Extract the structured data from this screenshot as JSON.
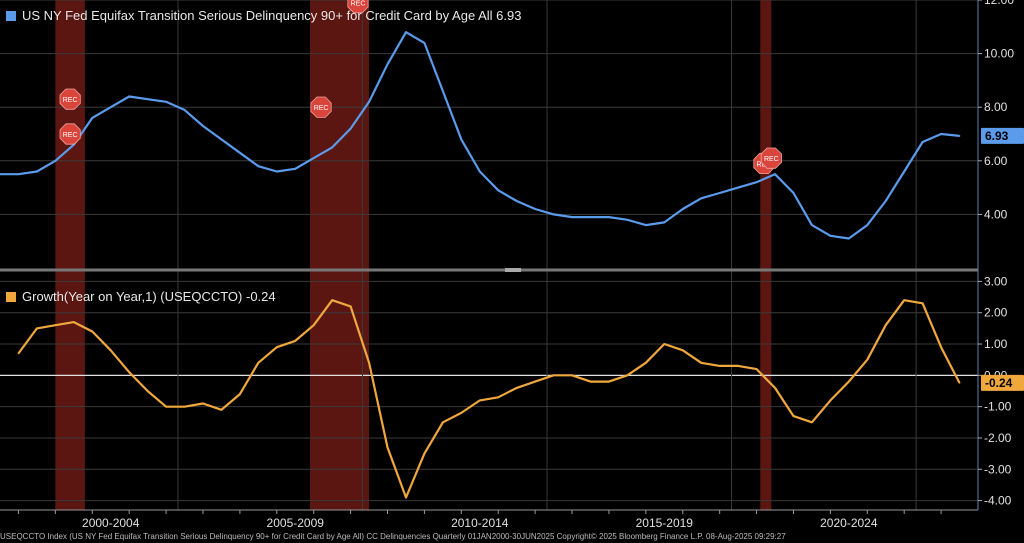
{
  "colors": {
    "background": "#000000",
    "delinquency": "#5b9bec",
    "growth": "#f0a83c",
    "recession": "#6b1a14",
    "grid": "#3a3a3a",
    "rec_marker": "#d9453b"
  },
  "top_legend": {
    "label": "US NY Fed Equifax Transition Serious Delinquency 90+ for Credit Card by Age All 6.93"
  },
  "bottom_legend": {
    "label": "Growth(Year on Year,1) (USEQCCTO) -0.24"
  },
  "footer": {
    "text": "USEQCCTO Index (US NY Fed Equifax Transition Serious Delinquency 90+ for Credit Card by Age All) CC Delinquencies Quarterly 01JAN2000-30JUN2025 Copyright© 2025 Bloomberg Finance L.P. 08-Aug-2025 09:29:27"
  },
  "chart_data": [
    {
      "type": "line",
      "title": "US NY Fed Equifax Transition Serious Delinquency 90+ for Credit Card by Age All 6.93",
      "series": [
        {
          "name": "US NY Fed Equifax Transition Serious Delinquency 90+ for Credit Card by Age All",
          "x": [
            1999.5,
            2000.0,
            2000.5,
            2001.0,
            2001.5,
            2002.0,
            2002.5,
            2003.0,
            2003.5,
            2004.0,
            2004.5,
            2005.0,
            2005.5,
            2006.0,
            2006.5,
            2007.0,
            2007.5,
            2008.0,
            2008.5,
            2009.0,
            2009.5,
            2010.0,
            2010.5,
            2011.0,
            2011.5,
            2012.0,
            2012.5,
            2013.0,
            2013.5,
            2014.0,
            2014.5,
            2015.0,
            2015.5,
            2016.0,
            2016.5,
            2017.0,
            2017.5,
            2018.0,
            2018.5,
            2019.0,
            2019.5,
            2020.0,
            2020.5,
            2021.0,
            2021.5,
            2022.0,
            2022.5,
            2023.0,
            2023.5,
            2024.0,
            2024.5,
            2025.0,
            2025.5
          ],
          "values": [
            5.5,
            5.5,
            5.6,
            6.0,
            6.6,
            7.6,
            8.0,
            8.4,
            8.3,
            8.2,
            7.9,
            7.3,
            6.8,
            6.3,
            5.8,
            5.6,
            5.7,
            6.1,
            6.5,
            7.2,
            8.2,
            9.6,
            10.8,
            10.4,
            8.6,
            6.8,
            5.6,
            4.9,
            4.5,
            4.2,
            4.0,
            3.9,
            3.9,
            3.9,
            3.8,
            3.6,
            3.7,
            4.2,
            4.6,
            4.8,
            5.0,
            5.2,
            5.5,
            4.8,
            3.6,
            3.2,
            3.1,
            3.6,
            4.5,
            5.6,
            6.7,
            7.0,
            6.93
          ],
          "last_label": "6.93"
        }
      ],
      "ylim": [
        2.0,
        12.0
      ],
      "yticks": [
        "12.00",
        "10.00",
        "8.00",
        "6.00",
        "4.00"
      ],
      "grid": true
    },
    {
      "type": "line",
      "title": "Growth(Year on Year,1) (USEQCCTO) -0.24",
      "series": [
        {
          "name": "Growth(Year on Year,1) (USEQCCTO)",
          "x": [
            2000.0,
            2000.5,
            2001.0,
            2001.5,
            2002.0,
            2002.5,
            2003.0,
            2003.5,
            2004.0,
            2004.5,
            2005.0,
            2005.5,
            2006.0,
            2006.5,
            2007.0,
            2007.5,
            2008.0,
            2008.5,
            2009.0,
            2009.5,
            2010.0,
            2010.5,
            2011.0,
            2011.5,
            2012.0,
            2012.5,
            2013.0,
            2013.5,
            2014.0,
            2014.5,
            2015.0,
            2015.5,
            2016.0,
            2016.5,
            2017.0,
            2017.5,
            2018.0,
            2018.5,
            2019.0,
            2019.5,
            2020.0,
            2020.5,
            2021.0,
            2021.5,
            2022.0,
            2022.5,
            2023.0,
            2023.5,
            2024.0,
            2024.5,
            2025.0,
            2025.5
          ],
          "values": [
            0.7,
            1.5,
            1.6,
            1.7,
            1.4,
            0.8,
            0.1,
            -0.5,
            -1.0,
            -1.0,
            -0.9,
            -1.1,
            -0.6,
            0.4,
            0.9,
            1.1,
            1.6,
            2.4,
            2.2,
            0.4,
            -2.3,
            -3.9,
            -2.5,
            -1.5,
            -1.2,
            -0.8,
            -0.7,
            -0.4,
            -0.2,
            0.0,
            0.0,
            -0.2,
            -0.2,
            0.0,
            0.4,
            1.0,
            0.8,
            0.4,
            0.3,
            0.3,
            0.2,
            -0.4,
            -1.3,
            -1.5,
            -0.8,
            -0.2,
            0.5,
            1.6,
            2.4,
            2.3,
            0.9,
            -0.24
          ],
          "last_label": "-0.24"
        }
      ],
      "ylim": [
        -4.3,
        3.3
      ],
      "yticks": [
        "3.00",
        "2.00",
        "1.00",
        "0.00",
        "-1.00",
        "-2.00",
        "-3.00",
        "-4.00"
      ],
      "grid": true
    }
  ],
  "x_axis": {
    "range": [
      1999.5,
      2026.0
    ],
    "tick_labels": [
      "2000-2004",
      "2005-2009",
      "2010-2014",
      "2015-2019",
      "2020-2024"
    ],
    "tick_centers": [
      2002.5,
      2007.5,
      2012.5,
      2017.5,
      2022.5
    ],
    "tick_marks": [
      2000,
      2001,
      2002,
      2003,
      2004,
      2005,
      2006,
      2007,
      2008,
      2009,
      2010,
      2011,
      2012,
      2013,
      2014,
      2015,
      2016,
      2017,
      2018,
      2019,
      2020,
      2021,
      2022,
      2023,
      2024,
      2025
    ]
  },
  "recessions": [
    {
      "start": 2001.0,
      "end": 2001.8
    },
    {
      "start": 2007.9,
      "end": 2009.5
    },
    {
      "start": 2020.1,
      "end": 2020.4
    }
  ],
  "rec_markers": [
    {
      "x": 2001.4,
      "y": 7.0,
      "label": "REC"
    },
    {
      "x": 2001.4,
      "y": 8.3,
      "label": "REC"
    },
    {
      "x": 2008.2,
      "y": 8.0,
      "label": "REC"
    },
    {
      "x": 2009.2,
      "y": 11.9,
      "label": "REC"
    },
    {
      "x": 2020.2,
      "y": 5.9,
      "label": "REC"
    },
    {
      "x": 2020.4,
      "y": 6.1,
      "label": "REC"
    }
  ]
}
